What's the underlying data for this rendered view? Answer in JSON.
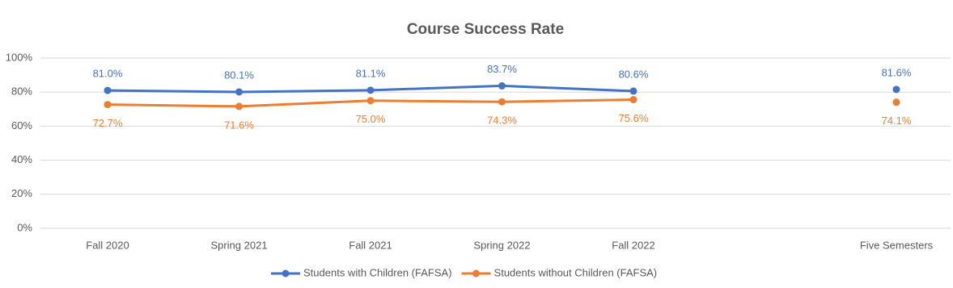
{
  "chart_data": {
    "type": "line",
    "title": "Course Success Rate",
    "categories": [
      "Fall 2020",
      "Spring 2021",
      "Fall 2021",
      "Spring 2022",
      "Fall 2022",
      null,
      "Five Semesters"
    ],
    "series": [
      {
        "name": "Students with Children (FAFSA)",
        "color": "#4472c4",
        "values": [
          81.0,
          80.1,
          81.1,
          83.7,
          80.6,
          null,
          81.6
        ],
        "value_labels": [
          "81.0%",
          "80.1%",
          "81.1%",
          "83.7%",
          "80.6%",
          null,
          "81.6%"
        ]
      },
      {
        "name": "Students without Children (FAFSA)",
        "color": "#ed7d31",
        "values": [
          72.7,
          71.6,
          75.0,
          74.3,
          75.6,
          null,
          74.1
        ],
        "value_labels": [
          "72.7%",
          "71.6%",
          "75.0%",
          "74.3%",
          "75.6%",
          null,
          "74.1%"
        ]
      }
    ],
    "ylim": [
      0,
      100
    ],
    "yticks": [
      {
        "value": 0,
        "label": "0%"
      },
      {
        "value": 20,
        "label": "20%"
      },
      {
        "value": 40,
        "label": "40%"
      },
      {
        "value": 60,
        "label": "60%"
      },
      {
        "value": 80,
        "label": "80%"
      },
      {
        "value": 100,
        "label": "100%"
      }
    ],
    "grid": true,
    "legend": "bottom"
  }
}
